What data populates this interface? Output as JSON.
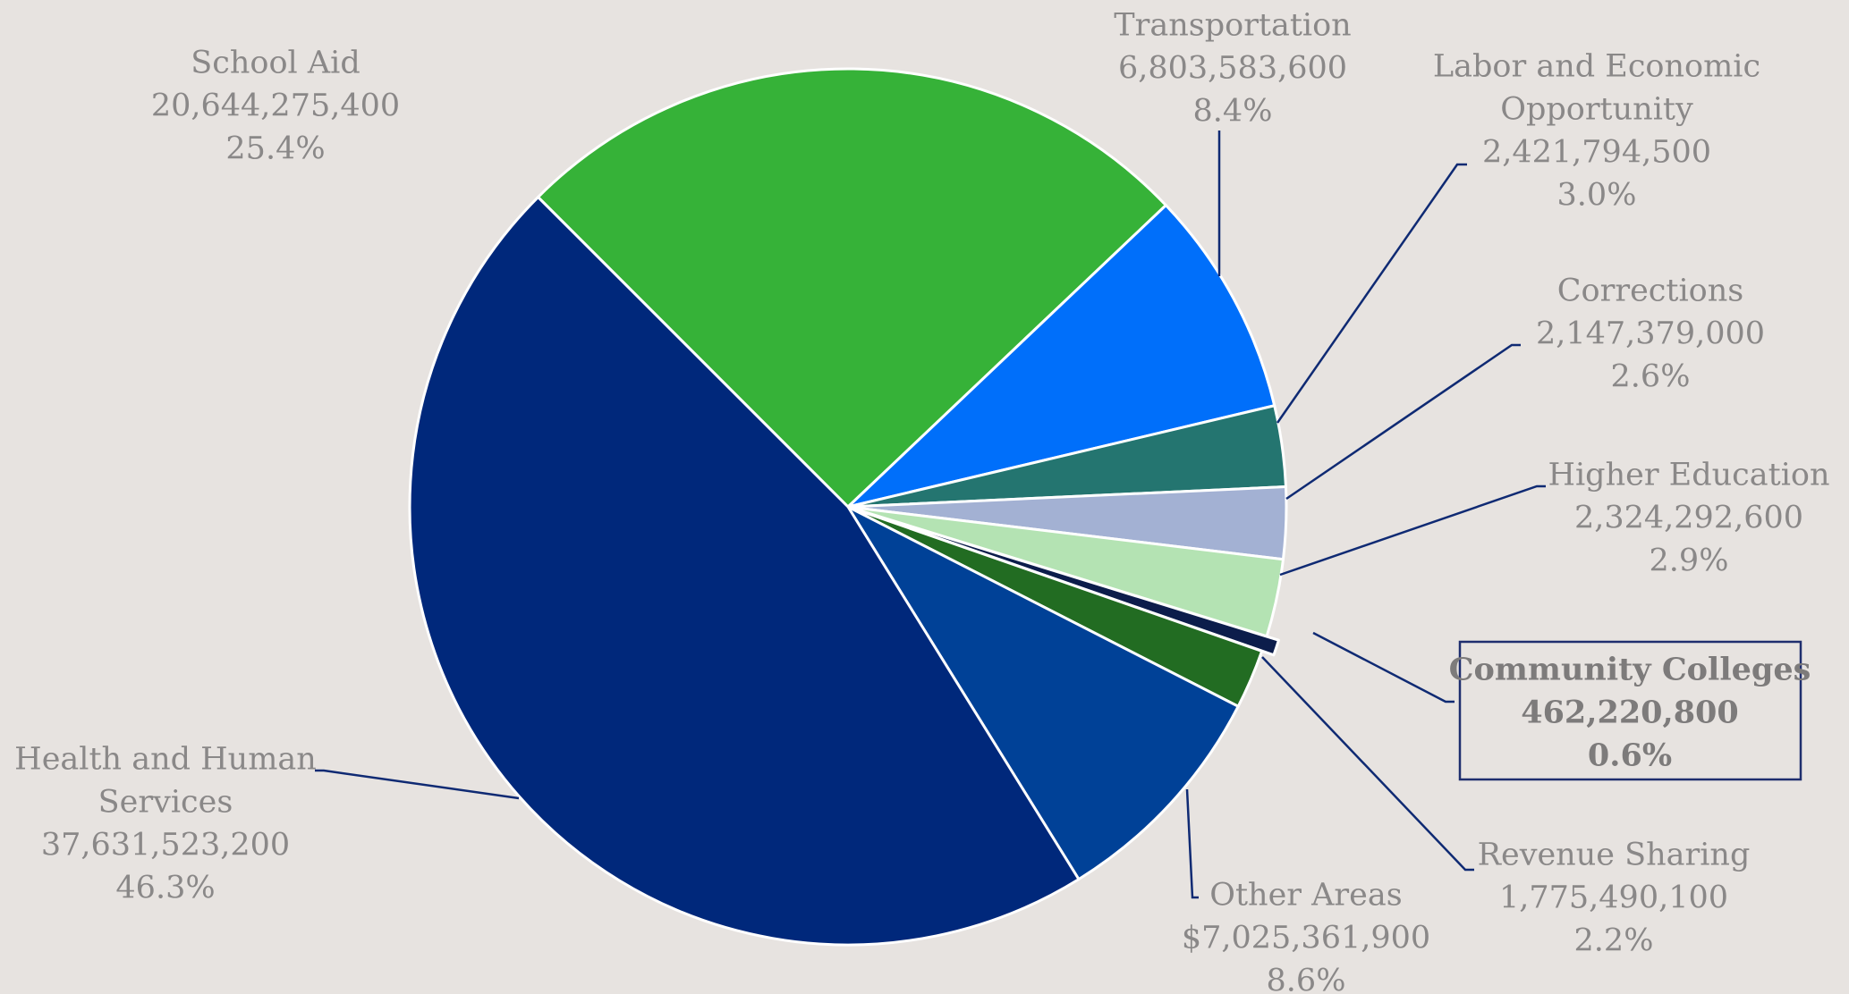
{
  "colors": {
    "background": "#e7e3e0",
    "label_text": "#8a8888",
    "leader_line": "#0f2a73",
    "highlight_box": "#1f2e6e"
  },
  "chart_data": {
    "type": "pie",
    "title": "",
    "start_angle_deg": -45,
    "direction": "clockwise",
    "highlighted_slice": "Community Colleges",
    "slices": [
      {
        "label_lines": [
          "School Aid"
        ],
        "value": 20644275400,
        "value_text": "20,644,275,400",
        "percent_text": "25.4%",
        "color": "#36b238"
      },
      {
        "label_lines": [
          "Transportation"
        ],
        "value": 6803583600,
        "value_text": "6,803,583,600",
        "percent_text": "8.4%",
        "color": "#006ffa"
      },
      {
        "label_lines": [
          "Labor and Economic",
          "Opportunity"
        ],
        "value": 2421794500,
        "value_text": "2,421,794,500",
        "percent_text": "3.0%",
        "color": "#247570"
      },
      {
        "label_lines": [
          "Corrections"
        ],
        "value": 2147379000,
        "value_text": "2,147,379,000",
        "percent_text": "2.6%",
        "color": "#a3b1d3"
      },
      {
        "label_lines": [
          "Higher Education"
        ],
        "value": 2324292600,
        "value_text": "2,324,292,600",
        "percent_text": "2.9%",
        "color": "#b4e3b3"
      },
      {
        "label_lines": [
          "Community Colleges"
        ],
        "value": 462220800,
        "value_text": "462,220,800",
        "percent_text": "0.6%",
        "color": "#0c1d4b"
      },
      {
        "label_lines": [
          "Revenue Sharing"
        ],
        "value": 1775490100,
        "value_text": "1,775,490,100",
        "percent_text": "2.2%",
        "color": "#226c22"
      },
      {
        "label_lines": [
          "Other Areas"
        ],
        "value": 7025361900,
        "value_text": "$7,025,361,900",
        "percent_text": "8.6%",
        "color": "#004197"
      },
      {
        "label_lines": [
          "Health and Human",
          "Services"
        ],
        "value": 37631523200,
        "value_text": "37,631,523,200",
        "percent_text": "46.3%",
        "color": "#00287b"
      }
    ]
  }
}
